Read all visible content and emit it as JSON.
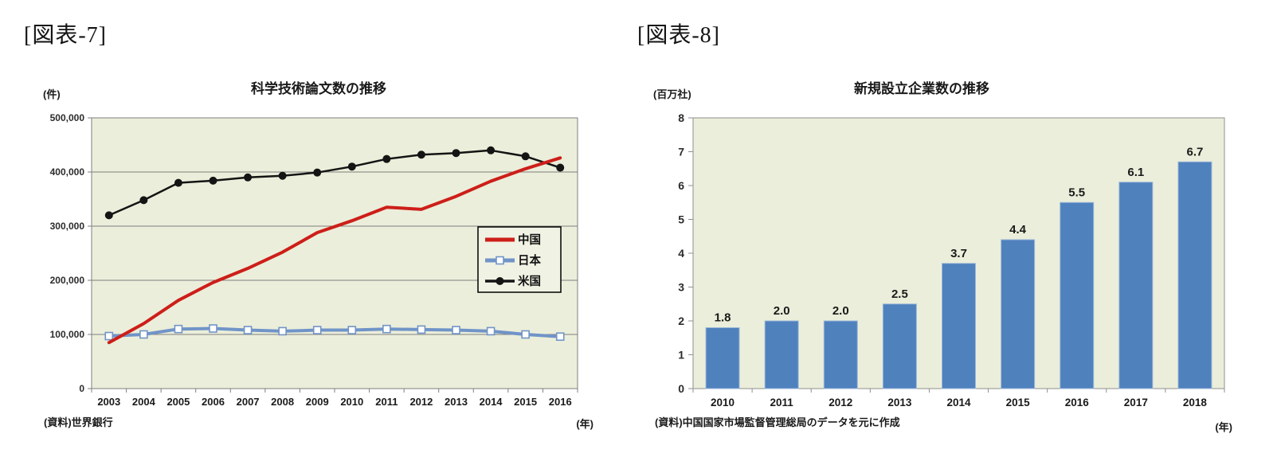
{
  "page": {
    "background": "#ffffff"
  },
  "chart_data": [
    {
      "figure_label": "[図表-7]",
      "type": "line",
      "title": "科学技術論文数の推移",
      "y_unit_label": "(件)",
      "x_unit_label": "(年)",
      "source": "(資料)世界銀行",
      "categories": [
        "2003",
        "2004",
        "2005",
        "2006",
        "2007",
        "2008",
        "2009",
        "2010",
        "2011",
        "2012",
        "2013",
        "2014",
        "2015",
        "2016"
      ],
      "ylim": [
        0,
        500000
      ],
      "ytick_step": 100000,
      "yticklabels": [
        "0",
        "100,000",
        "200,000",
        "300,000",
        "400,000",
        "500,000"
      ],
      "grid": true,
      "legend_position": "inside-right",
      "plot_bg": "#ebeeda",
      "axis_color": "#7f7f7f",
      "series": [
        {
          "name": "中国",
          "color": "#cd1e19",
          "marker": "none",
          "line_width": 4,
          "values": [
            85000,
            120000,
            163000,
            196000,
            222000,
            252000,
            288000,
            310000,
            335000,
            331000,
            355000,
            383000,
            406000,
            426000
          ]
        },
        {
          "name": "日本",
          "color": "#7094c8",
          "marker": "square",
          "line_width": 4,
          "values": [
            97000,
            100000,
            110000,
            111000,
            108000,
            106000,
            108000,
            108000,
            110000,
            109000,
            108000,
            106000,
            100000,
            96000
          ]
        },
        {
          "name": "米国",
          "color": "#141414",
          "marker": "circle",
          "line_width": 2.5,
          "values": [
            320000,
            348000,
            380000,
            384000,
            390000,
            393000,
            399000,
            410000,
            424000,
            432000,
            435000,
            440000,
            429000,
            408000
          ]
        }
      ]
    },
    {
      "figure_label": "[図表-8]",
      "type": "bar",
      "title": "新規設立企業数の推移",
      "y_unit_label": "(百万社)",
      "x_unit_label": "(年)",
      "source": "(資料)中国国家市場監督管理総局のデータを元に作成",
      "categories": [
        "2010",
        "2011",
        "2012",
        "2013",
        "2014",
        "2015",
        "2016",
        "2017",
        "2018"
      ],
      "values": [
        1.8,
        2.0,
        2.0,
        2.5,
        3.7,
        4.4,
        5.5,
        6.1,
        6.7
      ],
      "value_labels": [
        "1.8",
        "2.0",
        "2.0",
        "2.5",
        "3.7",
        "4.4",
        "5.5",
        "6.1",
        "6.7"
      ],
      "ylim": [
        0,
        8
      ],
      "ytick_step": 1,
      "yticklabels": [
        "0",
        "1",
        "2",
        "3",
        "4",
        "5",
        "6",
        "7",
        "8"
      ],
      "grid": false,
      "bar_color": "#4f81bd",
      "bar_border": "#9db8d9",
      "plot_bg": "#ebeeda",
      "axis_color": "#8f8f8f"
    }
  ]
}
